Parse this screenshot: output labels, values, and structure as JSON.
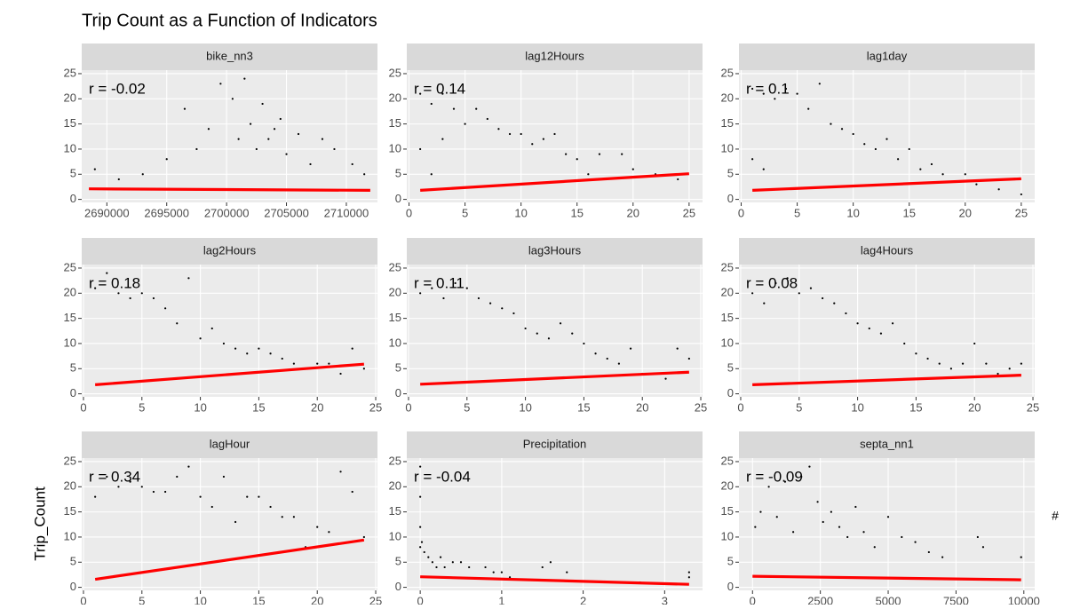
{
  "title": "Trip Count as a Function of Indicators",
  "y_label": "Trip_Count",
  "note": "#",
  "chart_data": [
    {
      "type": "scatter",
      "title": "bike_nn3",
      "annotation": "r = -0.02",
      "color": "#000000",
      "x": [
        2689000,
        2691000,
        2693000,
        2695000,
        2696500,
        2697500,
        2698500,
        2699500,
        2700500,
        2701000,
        2701500,
        2702000,
        2702500,
        2703000,
        2703500,
        2704000,
        2704500,
        2705000,
        2706000,
        2707000,
        2708000,
        2709000,
        2710500,
        2711500
      ],
      "y": [
        6,
        4,
        5,
        8,
        18,
        10,
        14,
        23,
        20,
        12,
        24,
        15,
        10,
        19,
        12,
        14,
        16,
        9,
        13,
        7,
        12,
        10,
        7,
        5
      ],
      "fit_line": {
        "color": "#ff0000",
        "x": [
          2688500,
          2712000
        ],
        "y": [
          2.1,
          1.8
        ]
      },
      "xlim": [
        2687900,
        2712600
      ],
      "xticks": [
        2690000,
        2695000,
        2700000,
        2705000,
        2710000
      ],
      "ylim": [
        -0.6,
        25.7
      ],
      "yticks": [
        0,
        5,
        10,
        15,
        20,
        25
      ]
    },
    {
      "type": "scatter",
      "title": "lag12Hours",
      "annotation": "r = 0.14",
      "color": "#000000",
      "x": [
        1,
        1,
        2,
        2,
        3,
        3,
        4,
        5,
        6,
        7,
        8,
        9,
        10,
        11,
        12,
        13,
        14,
        15,
        16,
        17,
        19,
        20,
        22,
        24
      ],
      "y": [
        21,
        10,
        19,
        5,
        21,
        12,
        18,
        15,
        18,
        16,
        14,
        13,
        13,
        11,
        12,
        13,
        9,
        8,
        5,
        9,
        9,
        6,
        5,
        4
      ],
      "fit_line": {
        "color": "#ff0000",
        "x": [
          1,
          25
        ],
        "y": [
          1.8,
          5.1
        ]
      },
      "xlim": [
        -0.2,
        26.2
      ],
      "xticks": [
        0,
        5,
        10,
        15,
        20,
        25
      ],
      "ylim": [
        -0.6,
        25.7
      ],
      "yticks": [
        0,
        5,
        10,
        15,
        20,
        25
      ]
    },
    {
      "type": "scatter",
      "title": "lag1day",
      "annotation": "r = 0.1",
      "color": "#000000",
      "x": [
        1,
        1,
        2,
        2,
        3,
        4,
        5,
        6,
        7,
        8,
        9,
        10,
        11,
        12,
        13,
        14,
        15,
        16,
        17,
        18,
        20,
        21,
        23,
        25
      ],
      "y": [
        22,
        8,
        21,
        6,
        20,
        22,
        21,
        18,
        23,
        15,
        14,
        13,
        11,
        10,
        12,
        8,
        10,
        6,
        7,
        5,
        5,
        3,
        2,
        1
      ],
      "fit_line": {
        "color": "#ff0000",
        "x": [
          1,
          25
        ],
        "y": [
          1.8,
          4.1
        ]
      },
      "xlim": [
        -0.2,
        26.2
      ],
      "xticks": [
        0,
        5,
        10,
        15,
        20,
        25
      ],
      "ylim": [
        -0.6,
        25.7
      ],
      "yticks": [
        0,
        5,
        10,
        15,
        20,
        25
      ]
    },
    {
      "type": "scatter",
      "title": "lag2Hours",
      "annotation": "r = 0.18",
      "color": "#000000",
      "x": [
        1,
        2,
        3,
        4,
        5,
        6,
        7,
        8,
        9,
        10,
        11,
        12,
        13,
        14,
        15,
        16,
        17,
        18,
        19,
        20,
        21,
        22,
        23,
        24
      ],
      "y": [
        21,
        24,
        20,
        19,
        20,
        19,
        17,
        14,
        23,
        11,
        13,
        10,
        9,
        8,
        9,
        8,
        7,
        6,
        5,
        6,
        6,
        4,
        9,
        5
      ],
      "fit_line": {
        "color": "#ff0000",
        "x": [
          1,
          24
        ],
        "y": [
          1.8,
          5.9
        ]
      },
      "xlim": [
        -0.15,
        25.15
      ],
      "xticks": [
        0,
        5,
        10,
        15,
        20,
        25
      ],
      "ylim": [
        -0.6,
        25.7
      ],
      "yticks": [
        0,
        5,
        10,
        15,
        20,
        25
      ]
    },
    {
      "type": "scatter",
      "title": "lag3Hours",
      "annotation": "r = 0.11",
      "color": "#000000",
      "x": [
        1,
        2,
        3,
        4,
        5,
        6,
        7,
        8,
        9,
        10,
        11,
        12,
        13,
        14,
        15,
        16,
        17,
        18,
        19,
        20,
        21,
        22,
        23,
        24
      ],
      "y": [
        20,
        21,
        19,
        22,
        21,
        19,
        18,
        17,
        16,
        13,
        12,
        11,
        14,
        12,
        10,
        8,
        7,
        6,
        9,
        4,
        4,
        3,
        9,
        7
      ],
      "fit_line": {
        "color": "#ff0000",
        "x": [
          1,
          24
        ],
        "y": [
          1.9,
          4.3
        ]
      },
      "xlim": [
        -0.15,
        25.15
      ],
      "xticks": [
        0,
        5,
        10,
        15,
        20,
        25
      ],
      "ylim": [
        -0.6,
        25.7
      ],
      "yticks": [
        0,
        5,
        10,
        15,
        20,
        25
      ]
    },
    {
      "type": "scatter",
      "title": "lag4Hours",
      "annotation": "r = 0.08",
      "color": "#000000",
      "x": [
        1,
        2,
        3,
        4,
        5,
        6,
        7,
        8,
        9,
        10,
        11,
        12,
        13,
        14,
        15,
        16,
        17,
        18,
        19,
        20,
        21,
        22,
        23,
        24
      ],
      "y": [
        20,
        18,
        22,
        23,
        20,
        21,
        19,
        18,
        16,
        14,
        13,
        12,
        14,
        10,
        8,
        7,
        6,
        5,
        6,
        10,
        6,
        4,
        5,
        6
      ],
      "fit_line": {
        "color": "#ff0000",
        "x": [
          1,
          24
        ],
        "y": [
          1.8,
          3.7
        ]
      },
      "xlim": [
        -0.15,
        25.15
      ],
      "xticks": [
        0,
        5,
        10,
        15,
        20,
        25
      ],
      "ylim": [
        -0.6,
        25.7
      ],
      "yticks": [
        0,
        5,
        10,
        15,
        20,
        25
      ]
    },
    {
      "type": "scatter",
      "title": "lagHour",
      "annotation": "r = 0.34",
      "color": "#000000",
      "x": [
        1,
        2,
        3,
        4,
        5,
        6,
        7,
        8,
        9,
        10,
        11,
        12,
        13,
        14,
        15,
        16,
        17,
        18,
        19,
        20,
        21,
        22,
        23,
        24
      ],
      "y": [
        18,
        22,
        20,
        21,
        20,
        19,
        19,
        22,
        24,
        18,
        16,
        22,
        13,
        18,
        18,
        16,
        14,
        14,
        8,
        12,
        11,
        23,
        19,
        10
      ],
      "fit_line": {
        "color": "#ff0000",
        "x": [
          1,
          24
        ],
        "y": [
          1.6,
          9.4
        ]
      },
      "xlim": [
        -0.15,
        25.15
      ],
      "xticks": [
        0,
        5,
        10,
        15,
        20,
        25
      ],
      "ylim": [
        -0.6,
        25.7
      ],
      "yticks": [
        0,
        5,
        10,
        15,
        20,
        25
      ]
    },
    {
      "type": "scatter",
      "title": "Precipitation",
      "annotation": "r = -0.04",
      "color": "#000000",
      "x": [
        0,
        0,
        0,
        0,
        0.02,
        0.05,
        0.1,
        0.15,
        0.2,
        0.25,
        0.3,
        0.4,
        0.5,
        0.6,
        0.8,
        0.9,
        1.0,
        1.1,
        1.5,
        1.6,
        1.8,
        2.7,
        3.3,
        3.3
      ],
      "y": [
        24,
        18,
        12,
        8,
        9,
        7,
        6,
        5,
        4,
        6,
        4,
        5,
        5,
        4,
        4,
        3,
        3,
        2,
        4,
        5,
        3,
        1,
        3,
        2
      ],
      "fit_line": {
        "color": "#ff0000",
        "x": [
          0,
          3.3
        ],
        "y": [
          2.1,
          0.6
        ]
      },
      "xlim": [
        -0.165,
        3.465
      ],
      "xticks": [
        0,
        1,
        2,
        3
      ],
      "ylim": [
        -0.6,
        25.7
      ],
      "yticks": [
        0,
        5,
        10,
        15,
        20,
        25
      ]
    },
    {
      "type": "scatter",
      "title": "septa_nn1",
      "annotation": "r = -0.09",
      "color": "#000000",
      "x": [
        100,
        300,
        600,
        900,
        1200,
        1500,
        1800,
        2100,
        2400,
        2600,
        2900,
        3200,
        3500,
        3800,
        4100,
        4500,
        5000,
        5500,
        6000,
        6500,
        7000,
        8300,
        8500,
        9900
      ],
      "y": [
        12,
        15,
        20,
        14,
        21,
        11,
        22,
        24,
        17,
        13,
        15,
        12,
        10,
        16,
        11,
        8,
        14,
        10,
        9,
        7,
        6,
        10,
        8,
        6
      ],
      "fit_line": {
        "color": "#ff0000",
        "x": [
          0,
          9900
        ],
        "y": [
          2.2,
          1.5
        ]
      },
      "xlim": [
        -500,
        10400
      ],
      "xticks": [
        0,
        2500,
        5000,
        7500,
        10000
      ],
      "ylim": [
        -0.6,
        25.7
      ],
      "yticks": [
        0,
        5,
        10,
        15,
        20,
        25
      ]
    }
  ]
}
